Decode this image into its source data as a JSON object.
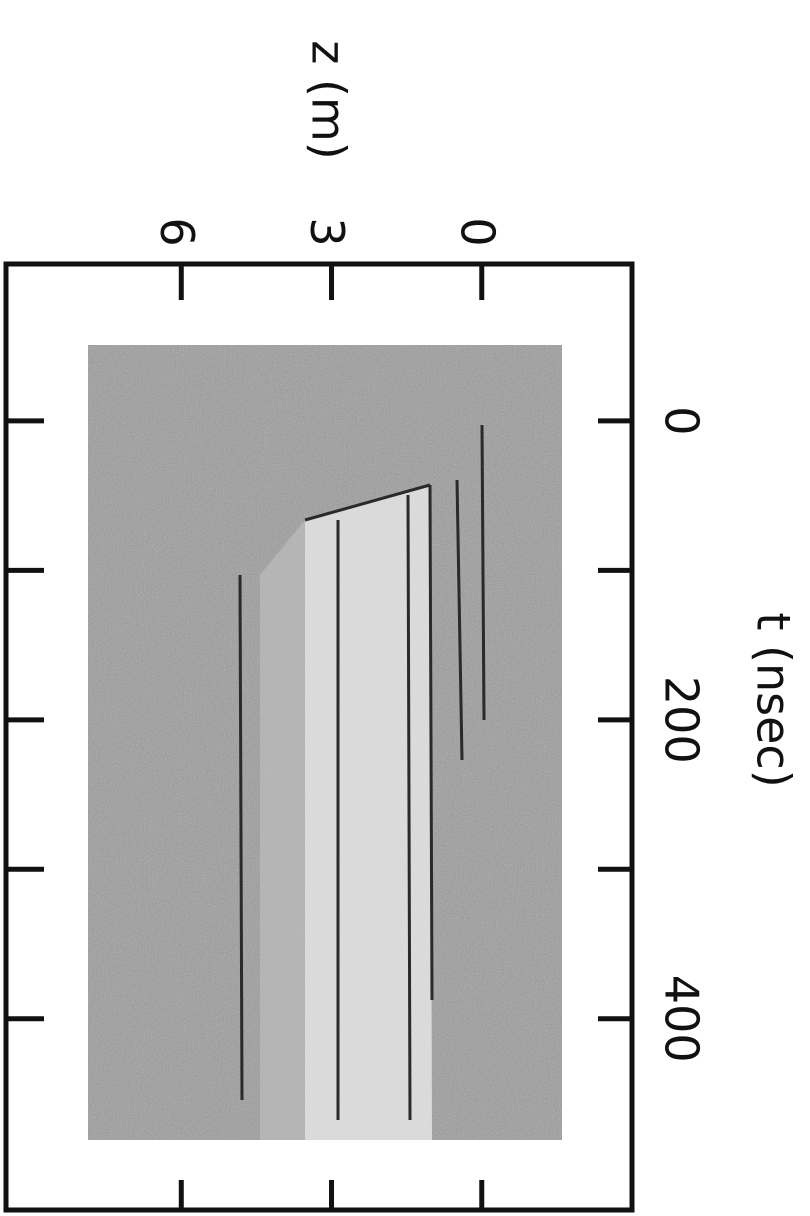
{
  "chart_data": {
    "type": "streak-image",
    "x_label": "t (nsec)",
    "y_label": "z (m)",
    "xlim": [
      -105,
      528
    ],
    "xticks": [
      0,
      200,
      400
    ],
    "x_minor_ticks": [
      100,
      300
    ],
    "ylim": [
      -3,
      9.5
    ],
    "yticks": [
      0,
      3,
      6
    ],
    "rotation": 90
  }
}
